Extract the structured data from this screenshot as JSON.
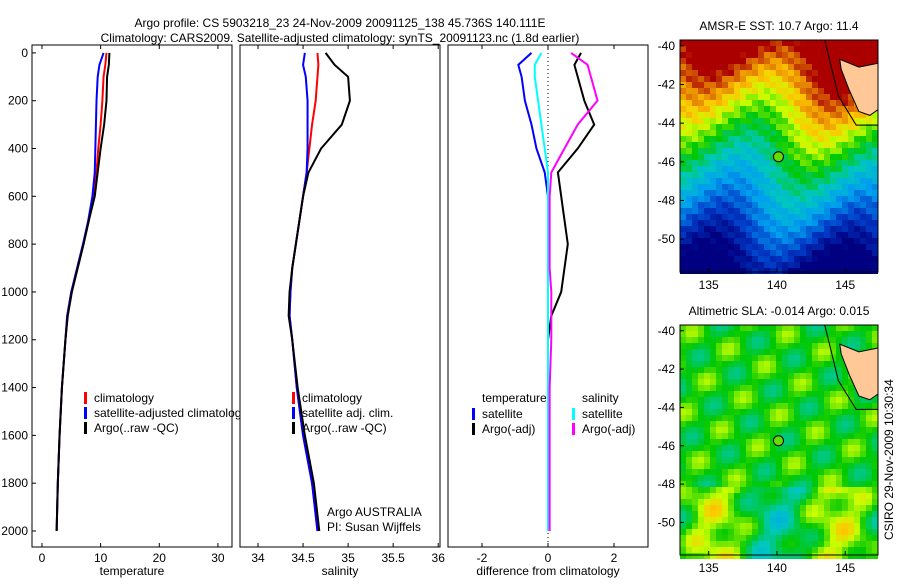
{
  "title_line1": "Argo profile: CS 5903218_23 24-Nov-2009 20091125_138 45.736S 140.111E",
  "title_line2": "Climatology: CARS2009. Satellite-adjusted climatology: synTS_20091123.nc (1.8d earlier)",
  "side_label": "CSIRO 29-Nov-2009 10:30:34",
  "credit1": "Argo AUSTRALIA",
  "credit2": "PI: Susan Wijffels",
  "colors": {
    "red": "#ff0000",
    "blue": "#0000ff",
    "black": "#000000",
    "cyan": "#00ffff",
    "magenta": "#ff00ff"
  },
  "chart_data": [
    {
      "type": "line",
      "xlabel": "temperature",
      "ylabel": "",
      "xlim": [
        -1.7,
        32.4
      ],
      "ylim": [
        2067,
        -33
      ],
      "xticks": [
        0,
        10,
        20,
        30
      ],
      "yticks": [
        0,
        200,
        400,
        600,
        800,
        1000,
        1200,
        1400,
        1600,
        1800,
        2000
      ],
      "depth": [
        0,
        50,
        100,
        200,
        300,
        400,
        500,
        600,
        700,
        800,
        900,
        1000,
        1100,
        1200,
        1400,
        1600,
        1800,
        2000
      ],
      "series": [
        {
          "name": "climatology",
          "color": "red",
          "values": [
            11,
            10.8,
            10.5,
            10.3,
            10,
            9.6,
            9.3,
            8.8,
            8,
            7,
            6,
            5,
            4.3,
            4,
            3.4,
            3,
            2.7,
            2.5
          ]
        },
        {
          "name": "satellite-adjusted climatology",
          "color": "blue",
          "values": [
            10.5,
            9.8,
            9.5,
            9.3,
            9.2,
            9.1,
            9,
            8.6,
            7.9,
            7,
            6,
            5,
            4.3,
            4,
            3.4,
            3,
            2.7,
            2.5
          ]
        },
        {
          "name": "Argo(..raw -QC)",
          "color": "black",
          "values": [
            11.5,
            11.4,
            11.1,
            11,
            10.6,
            10,
            9.5,
            9,
            8,
            7.1,
            6.1,
            5.1,
            4.4,
            4,
            3.4,
            3,
            2.7,
            2.5
          ]
        }
      ]
    },
    {
      "type": "line",
      "xlabel": "salinity",
      "ylabel": "",
      "xlim": [
        33.8,
        36.02
      ],
      "ylim": [
        2067,
        -33
      ],
      "xticks": [
        34,
        34.5,
        35,
        35.5,
        36
      ],
      "yticks": [],
      "depth": [
        0,
        50,
        100,
        200,
        300,
        400,
        500,
        600,
        700,
        800,
        900,
        1000,
        1100,
        1200,
        1400,
        1600,
        1800,
        2000
      ],
      "series": [
        {
          "name": "climatology",
          "color": "red",
          "values": [
            34.66,
            34.67,
            34.66,
            34.64,
            34.6,
            34.57,
            34.54,
            34.5,
            34.46,
            34.42,
            34.38,
            34.36,
            34.35,
            34.38,
            34.43,
            34.5,
            34.6,
            34.66
          ]
        },
        {
          "name": "satellite adj. clim.",
          "color": "blue",
          "values": [
            34.52,
            34.5,
            34.53,
            34.55,
            34.55,
            34.55,
            34.54,
            34.5,
            34.46,
            34.42,
            34.38,
            34.36,
            34.35,
            34.38,
            34.43,
            34.5,
            34.6,
            34.66
          ]
        },
        {
          "name": "Argo(..raw -QC)",
          "color": "black",
          "values": [
            34.75,
            34.85,
            35.0,
            35.02,
            34.93,
            34.7,
            34.56,
            34.5,
            34.46,
            34.42,
            34.38,
            34.35,
            34.34,
            34.38,
            34.44,
            34.52,
            34.62,
            34.68
          ]
        }
      ]
    },
    {
      "type": "line",
      "xlabel": "difference from climatology",
      "ylabel": "",
      "xlim": [
        -3.03,
        3.03
      ],
      "ylim": [
        2067,
        -33
      ],
      "xticks": [
        -2,
        0,
        2
      ],
      "yticks": [],
      "legend_titles": [
        "temperature",
        "salinity"
      ],
      "depth": [
        0,
        50,
        100,
        200,
        300,
        400,
        500,
        600,
        700,
        800,
        900,
        1000,
        1100,
        1200,
        1400,
        1600,
        1800,
        2000
      ],
      "series": [
        {
          "name": "satellite",
          "group": "temperature",
          "color": "blue",
          "values": [
            -0.5,
            -0.9,
            -0.8,
            -0.7,
            -0.5,
            -0.35,
            -0.1,
            0,
            0,
            0,
            0,
            0,
            0,
            0,
            0,
            0,
            0,
            0
          ]
        },
        {
          "name": "Argo(-adj)",
          "group": "temperature",
          "color": "black",
          "values": [
            1.0,
            0.8,
            0.9,
            1.1,
            1.4,
            0.9,
            0.3,
            0.4,
            0.5,
            0.6,
            0.5,
            0.4,
            0.1,
            0,
            0,
            0,
            0,
            0
          ]
        },
        {
          "name": "satellite",
          "group": "salinity",
          "color": "cyan",
          "values": [
            -0.2,
            -0.4,
            -0.4,
            -0.3,
            -0.2,
            -0.1,
            0,
            0,
            0,
            0,
            0,
            0,
            0,
            0,
            0,
            0,
            0,
            0
          ]
        },
        {
          "name": "Argo(-adj)",
          "group": "salinity",
          "color": "magenta",
          "values": [
            0.7,
            1.2,
            1.3,
            1.5,
            0.9,
            0.5,
            0.1,
            0.05,
            0.05,
            0.05,
            0.05,
            0.1,
            0.1,
            0.1,
            0.05,
            0.05,
            0.05,
            0.05
          ]
        }
      ]
    },
    {
      "type": "heatmap",
      "title": "AMSR-E SST: 10.7 Argo: 11.4",
      "xlim": [
        132.9,
        147.4
      ],
      "ylim": [
        -51.7,
        -39.7
      ],
      "xticks": [
        135,
        140,
        145
      ],
      "yticks": [
        -40,
        -42,
        -44,
        -46,
        -48,
        -50
      ],
      "marker": {
        "lon": 140.111,
        "lat": -45.736
      }
    },
    {
      "type": "heatmap",
      "title": "Altimetric SLA: -0.014 Argo: 0.015",
      "xlim": [
        132.9,
        147.4
      ],
      "ylim": [
        -51.7,
        -39.7
      ],
      "xticks": [
        135,
        140,
        145
      ],
      "yticks": [
        -40,
        -42,
        -44,
        -46,
        -48,
        -50
      ],
      "marker": {
        "lon": 140.111,
        "lat": -45.736
      }
    }
  ]
}
